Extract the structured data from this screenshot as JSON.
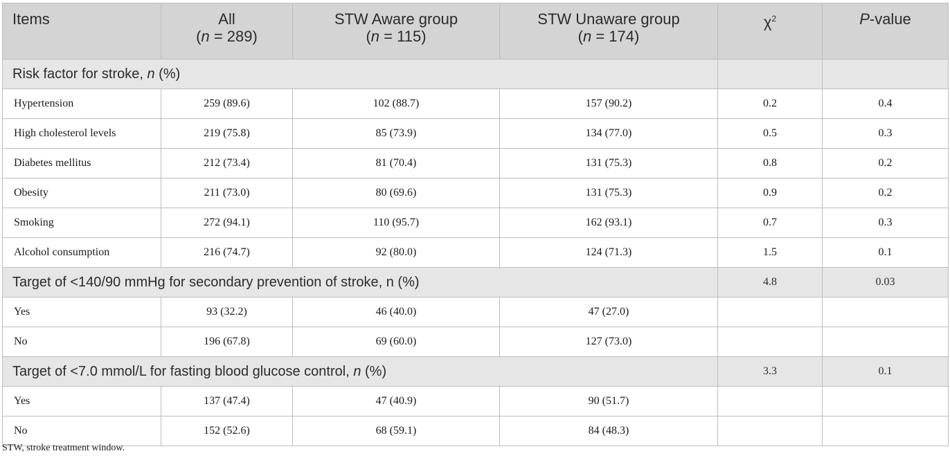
{
  "header": {
    "items": "Items",
    "all": {
      "label": "All",
      "n_prefix": "n",
      "n_value": " = 289)"
    },
    "aware": {
      "label": "STW Aware group",
      "n_prefix": "n",
      "n_value": " = 115)"
    },
    "unaware": {
      "label": "STW Unaware group",
      "n_prefix": "n",
      "n_value": " = 174)"
    },
    "chi": "χ",
    "chi_sup": "2",
    "p_italic": "P",
    "p_rest": "-value"
  },
  "sections": [
    {
      "label_pre": "Risk factor for stroke, ",
      "label_italic": "n",
      "label_post": " (%)",
      "chi": "",
      "p": "",
      "rows": [
        {
          "item": "Hypertension",
          "all": "259 (89.6)",
          "aware": "102 (88.7)",
          "unaware": "157 (90.2)",
          "chi": "0.2",
          "p": "0.4"
        },
        {
          "item": "High cholesterol levels",
          "all": "219 (75.8)",
          "aware": "85 (73.9)",
          "unaware": "134 (77.0)",
          "chi": "0.5",
          "p": "0.3"
        },
        {
          "item": "Diabetes mellitus",
          "all": "212 (73.4)",
          "aware": "81 (70.4)",
          "unaware": "131 (75.3)",
          "chi": "0.8",
          "p": "0.2"
        },
        {
          "item": "Obesity",
          "all": "211 (73.0)",
          "aware": "80 (69.6)",
          "unaware": "131 (75.3)",
          "chi": "0.9",
          "p": "0.2"
        },
        {
          "item": "Smoking",
          "all": "272 (94.1)",
          "aware": "110 (95.7)",
          "unaware": "162 (93.1)",
          "chi": "0.7",
          "p": "0.3"
        },
        {
          "item": "Alcohol consumption",
          "all": "216 (74.7)",
          "aware": "92 (80.0)",
          "unaware": "124 (71.3)",
          "chi": "1.5",
          "p": "0.1"
        }
      ]
    },
    {
      "label_pre": "Target of <140/90 mmHg for secondary prevention of stroke, n (%)",
      "label_italic": "",
      "label_post": "",
      "chi": "4.8",
      "p": "0.03",
      "rows": [
        {
          "item": "Yes",
          "all": "93 (32.2)",
          "aware": "46 (40.0)",
          "unaware": "47 (27.0)",
          "chi": "",
          "p": ""
        },
        {
          "item": "No",
          "all": "196 (67.8)",
          "aware": "69 (60.0)",
          "unaware": "127 (73.0)",
          "chi": "",
          "p": ""
        }
      ]
    },
    {
      "label_pre": "Target of <7.0 mmol/L for fasting blood glucose control, ",
      "label_italic": "n",
      "label_post": " (%)",
      "chi": "3.3",
      "p": "0.1",
      "rows": [
        {
          "item": "Yes",
          "all": "137 (47.4)",
          "aware": "47 (40.9)",
          "unaware": "90 (51.7)",
          "chi": "",
          "p": ""
        },
        {
          "item": "No",
          "all": "152 (52.6)",
          "aware": "68 (59.1)",
          "unaware": "84 (48.3)",
          "chi": "",
          "p": ""
        }
      ]
    }
  ],
  "footnote": "STW, stroke treatment window."
}
